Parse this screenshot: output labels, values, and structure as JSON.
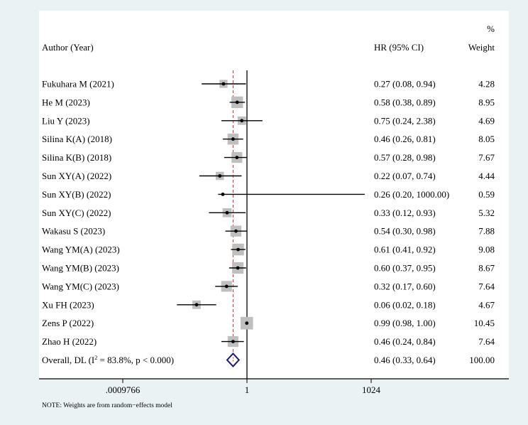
{
  "chart_data": {
    "type": "forest",
    "xscale": "log",
    "ticks": [
      ".0009766",
      "1",
      "1024"
    ],
    "tick_values": [
      0.0009766,
      1,
      1024
    ],
    "header": {
      "author": "Author (Year)",
      "effect": "HR (95% CI)",
      "weight_pct": "%",
      "weight": "Weight"
    },
    "studies": [
      {
        "label": "Fukuhara M (2021)",
        "hr": 0.27,
        "lo": 0.08,
        "hi": 0.94,
        "ci_text": "0.27 (0.08, 0.94)",
        "weight": 4.28,
        "weight_text": "4.28"
      },
      {
        "label": "He M (2023)",
        "hr": 0.58,
        "lo": 0.38,
        "hi": 0.89,
        "ci_text": "0.58 (0.38, 0.89)",
        "weight": 8.95,
        "weight_text": "8.95"
      },
      {
        "label": "Liu Y (2023)",
        "hr": 0.75,
        "lo": 0.24,
        "hi": 2.38,
        "ci_text": "0.75 (0.24, 2.38)",
        "weight": 4.69,
        "weight_text": "4.69"
      },
      {
        "label": "Silina K(A) (2018)",
        "hr": 0.46,
        "lo": 0.26,
        "hi": 0.81,
        "ci_text": "0.46 (0.26, 0.81)",
        "weight": 8.05,
        "weight_text": "8.05"
      },
      {
        "label": "Silina K(B) (2018)",
        "hr": 0.57,
        "lo": 0.28,
        "hi": 0.98,
        "ci_text": "0.57 (0.28, 0.98)",
        "weight": 7.67,
        "weight_text": "7.67"
      },
      {
        "label": "Sun XY(A) (2022)",
        "hr": 0.22,
        "lo": 0.07,
        "hi": 0.74,
        "ci_text": "0.22 (0.07, 0.74)",
        "weight": 4.44,
        "weight_text": "4.44"
      },
      {
        "label": "Sun XY(B) (2022)",
        "hr": 0.26,
        "lo": 0.2,
        "hi": 1000.0,
        "ci_text": "0.26 (0.20, 1000.00)",
        "weight": 0.59,
        "weight_text": "0.59"
      },
      {
        "label": "Sun XY(C) (2022)",
        "hr": 0.33,
        "lo": 0.12,
        "hi": 0.93,
        "ci_text": "0.33 (0.12, 0.93)",
        "weight": 5.32,
        "weight_text": "5.32"
      },
      {
        "label": "Wakasu S (2023)",
        "hr": 0.54,
        "lo": 0.3,
        "hi": 0.98,
        "ci_text": "0.54 (0.30, 0.98)",
        "weight": 7.88,
        "weight_text": "7.88"
      },
      {
        "label": "Wang YM(A) (2023)",
        "hr": 0.61,
        "lo": 0.41,
        "hi": 0.92,
        "ci_text": "0.61 (0.41, 0.92)",
        "weight": 9.08,
        "weight_text": "9.08"
      },
      {
        "label": "Wang YM(B) (2023)",
        "hr": 0.6,
        "lo": 0.37,
        "hi": 0.95,
        "ci_text": "0.60 (0.37, 0.95)",
        "weight": 8.67,
        "weight_text": "8.67"
      },
      {
        "label": "Wang YM(C) (2023)",
        "hr": 0.32,
        "lo": 0.17,
        "hi": 0.6,
        "ci_text": "0.32 (0.17, 0.60)",
        "weight": 7.64,
        "weight_text": "7.64"
      },
      {
        "label": "Xu FH (2023)",
        "hr": 0.06,
        "lo": 0.02,
        "hi": 0.18,
        "ci_text": "0.06 (0.02, 0.18)",
        "weight": 4.67,
        "weight_text": "4.67"
      },
      {
        "label": "Zens P (2022)",
        "hr": 0.99,
        "lo": 0.98,
        "hi": 1.0,
        "ci_text": "0.99 (0.98, 1.00)",
        "weight": 10.45,
        "weight_text": "10.45"
      },
      {
        "label": "Zhao H (2022)",
        "hr": 0.46,
        "lo": 0.24,
        "hi": 0.84,
        "ci_text": "0.46 (0.24, 0.84)",
        "weight": 7.64,
        "weight_text": "7.64"
      }
    ],
    "overall": {
      "label_prefix": "Overall, DL (I",
      "label_sup": "2",
      "label_suffix": " = 83.8%, p < 0.000)",
      "hr": 0.46,
      "lo": 0.33,
      "hi": 0.64,
      "ci_text": "0.46 (0.33, 0.64)",
      "weight_text": "100.00"
    },
    "colors": {
      "box": "#bfbfbf",
      "ci_line": "#000000",
      "overall_diamond": "#1a1a6e",
      "overall_line": "#b23b3b",
      "null_line": "#000000",
      "background": "#eaf2f3"
    }
  },
  "note": "NOTE: Weights are from random−effects model"
}
